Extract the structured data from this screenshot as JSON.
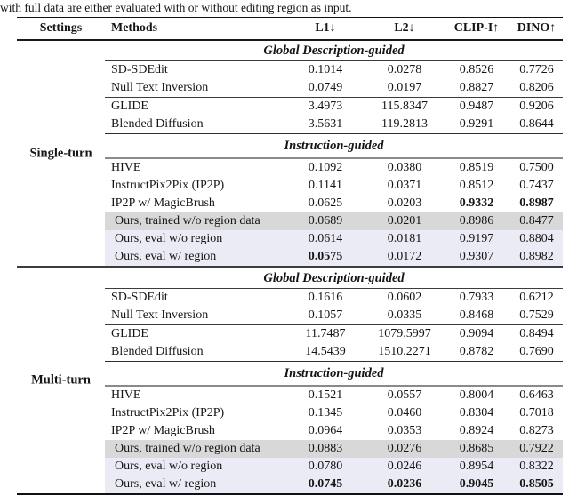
{
  "caption": "with full data are either evaluated with or without editing region as input.",
  "header": {
    "settings": "Settings",
    "methods": "Methods",
    "l1": "L1↓",
    "l2": "L2↓",
    "clip_i": "CLIP-I↑",
    "dino": "DINO↑"
  },
  "section_headers": {
    "global": "Global Description-guided",
    "instruction": "Instruction-guided"
  },
  "colors": {
    "highlight_gray": "#d8d8d8",
    "highlight_lavender": "#ebebf6"
  },
  "single_turn": {
    "label": "Single-turn",
    "rows": [
      {
        "method": "SD-SDEdit",
        "l1": "0.1014",
        "l2": "0.0278",
        "clip_i": "0.8526",
        "dino": "0.7726"
      },
      {
        "method": "Null Text Inversion",
        "l1": "0.0749",
        "l2": "0.0197",
        "clip_i": "0.8827",
        "dino": "0.8206"
      },
      {
        "method": "GLIDE",
        "l1": "3.4973",
        "l2": "115.8347",
        "clip_i": "0.9487",
        "dino": "0.9206"
      },
      {
        "method": "Blended Diffusion",
        "l1": "3.5631",
        "l2": "119.2813",
        "clip_i": "0.9291",
        "dino": "0.8644"
      },
      {
        "method": "HIVE",
        "l1": "0.1092",
        "l2": "0.0380",
        "clip_i": "0.8519",
        "dino": "0.7500"
      },
      {
        "method": "InstructPix2Pix (IP2P)",
        "l1": "0.1141",
        "l2": "0.0371",
        "clip_i": "0.8512",
        "dino": "0.7437"
      },
      {
        "method": "IP2P w/ MagicBrush",
        "l1": "0.0625",
        "l2": "0.0203",
        "clip_i": "0.9332",
        "dino": "0.8987"
      },
      {
        "method": "Ours, trained w/o region data",
        "l1": "0.0689",
        "l2": "0.0201",
        "clip_i": "0.8986",
        "dino": "0.8477"
      },
      {
        "method": "Ours, eval w/o region",
        "l1": "0.0614",
        "l2": "0.0181",
        "clip_i": "0.9197",
        "dino": "0.8804"
      },
      {
        "method": "Ours, eval w/ region",
        "l1": "0.0575",
        "l2": "0.0172",
        "clip_i": "0.9307",
        "dino": "0.8982"
      }
    ]
  },
  "multi_turn": {
    "label": "Multi-turn",
    "rows": [
      {
        "method": "SD-SDEdit",
        "l1": "0.1616",
        "l2": "0.0602",
        "clip_i": "0.7933",
        "dino": "0.6212"
      },
      {
        "method": "Null Text Inversion",
        "l1": "0.1057",
        "l2": "0.0335",
        "clip_i": "0.8468",
        "dino": "0.7529"
      },
      {
        "method": "GLIDE",
        "l1": "11.7487",
        "l2": "1079.5997",
        "clip_i": "0.9094",
        "dino": "0.8494"
      },
      {
        "method": "Blended Diffusion",
        "l1": "14.5439",
        "l2": "1510.2271",
        "clip_i": "0.8782",
        "dino": "0.7690"
      },
      {
        "method": "HIVE",
        "l1": "0.1521",
        "l2": "0.0557",
        "clip_i": "0.8004",
        "dino": "0.6463"
      },
      {
        "method": "InstructPix2Pix (IP2P)",
        "l1": "0.1345",
        "l2": "0.0460",
        "clip_i": "0.8304",
        "dino": "0.7018"
      },
      {
        "method": "IP2P w/ MagicBrush",
        "l1": "0.0964",
        "l2": "0.0353",
        "clip_i": "0.8924",
        "dino": "0.8273"
      },
      {
        "method": "Ours, trained w/o region data",
        "l1": "0.0883",
        "l2": "0.0276",
        "clip_i": "0.8685",
        "dino": "0.7922"
      },
      {
        "method": "Ours, eval w/o region",
        "l1": "0.0780",
        "l2": "0.0246",
        "clip_i": "0.8954",
        "dino": "0.8322"
      },
      {
        "method": "Ours, eval w/ region",
        "l1": "0.0745",
        "l2": "0.0236",
        "clip_i": "0.9045",
        "dino": "0.8505"
      }
    ]
  }
}
